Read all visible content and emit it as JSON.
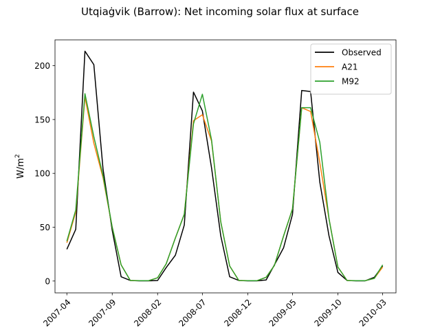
{
  "chart_data": {
    "type": "line",
    "title": "Utqiaġvik (Barrow): Net incoming solar flux at surface",
    "xlabel": "",
    "ylabel": "W/m",
    "ylabel_superscript": "2",
    "xlim": [
      "2007-02-20",
      "2010-04-15"
    ],
    "ylim": [
      -11,
      224
    ],
    "y_ticks": [
      0,
      50,
      100,
      150,
      200
    ],
    "x_ticks": [
      "2007-04",
      "2007-09",
      "2008-02",
      "2008-07",
      "2008-12",
      "2009-05",
      "2009-10",
      "2010-03"
    ],
    "grid": false,
    "legend_position": "top-right",
    "x": [
      "2007-04",
      "2007-05",
      "2007-06",
      "2007-07",
      "2007-08",
      "2007-09",
      "2007-10",
      "2007-11",
      "2007-12",
      "2008-01",
      "2008-02",
      "2008-03",
      "2008-04",
      "2008-05",
      "2008-06",
      "2008-07",
      "2008-08",
      "2008-09",
      "2008-10",
      "2008-11",
      "2008-12",
      "2009-01",
      "2009-02",
      "2009-03",
      "2009-04",
      "2009-05",
      "2009-06",
      "2009-07",
      "2009-08",
      "2009-09",
      "2009-10",
      "2009-11",
      "2009-12",
      "2010-01",
      "2010-02",
      "2010-03"
    ],
    "series": [
      {
        "name": "Observed",
        "color": "#000000",
        "values": [
          29.5,
          48,
          213.5,
          201,
          104,
          47,
          4,
          0.5,
          0.2,
          0.2,
          0.5,
          12.5,
          24,
          52,
          175.5,
          158,
          105,
          42,
          4,
          0.5,
          0.2,
          0.2,
          1,
          15,
          31,
          62,
          177,
          176,
          92,
          42,
          8,
          0.5,
          0.2,
          0.2,
          3.5,
          14
        ]
      },
      {
        "name": "A21",
        "color": "#ff7f0e",
        "values": [
          35.5,
          64,
          171,
          128,
          96,
          50,
          15,
          0.5,
          0.3,
          0.3,
          3,
          16,
          40,
          62,
          149,
          154.5,
          130,
          55,
          14,
          0.5,
          0.3,
          0.3,
          3.5,
          14.5,
          42,
          67,
          161,
          157.5,
          110,
          58,
          13,
          0.5,
          0.3,
          0.3,
          2.5,
          13
        ]
      },
      {
        "name": "M92",
        "color": "#2ca02c",
        "values": [
          37,
          66,
          174,
          134,
          98,
          50,
          15,
          0.5,
          0.3,
          0.3,
          3,
          16,
          40,
          62,
          146,
          173.5,
          131,
          55,
          14,
          0.5,
          0.3,
          0.3,
          3.5,
          14.5,
          42,
          67,
          161,
          161,
          129,
          58,
          13,
          0.5,
          0.3,
          0.3,
          2.5,
          15
        ]
      }
    ]
  }
}
